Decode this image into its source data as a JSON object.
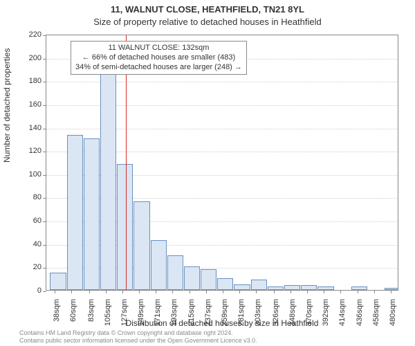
{
  "chart": {
    "type": "histogram",
    "title_main": "11, WALNUT CLOSE, HEATHFIELD, TN21 8YL",
    "title_sub": "Size of property relative to detached houses in Heathfield",
    "title_fontsize": 13,
    "ylabel": "Number of detached properties",
    "xlabel": "Distribution of detached houses by size in Heathfield",
    "label_fontsize": 12,
    "background_color": "#ffffff",
    "bar_fill": "#dbe6f4",
    "bar_stroke": "#6a8fc0",
    "grid_color": "#cccccc",
    "axis_color": "#888888",
    "ref_line_color": "#d62728",
    "ref_line_x": 132,
    "xlim": [
      27,
      491
    ],
    "ylim": [
      0,
      220
    ],
    "ytick_step": 20,
    "yticks": [
      0,
      20,
      40,
      60,
      80,
      100,
      120,
      140,
      160,
      180,
      200,
      220
    ],
    "xticks": [
      38,
      60,
      83,
      105,
      127,
      149,
      171,
      193,
      215,
      237,
      259,
      281,
      303,
      326,
      348,
      370,
      392,
      414,
      436,
      458,
      480
    ],
    "xtick_suffix": "sqm",
    "bars": [
      {
        "x0": 32,
        "x1": 54,
        "y": 15
      },
      {
        "x0": 54,
        "x1": 76,
        "y": 133
      },
      {
        "x0": 76,
        "x1": 98,
        "y": 130
      },
      {
        "x0": 98,
        "x1": 120,
        "y": 186
      },
      {
        "x0": 120,
        "x1": 142,
        "y": 108
      },
      {
        "x0": 142,
        "x1": 164,
        "y": 76
      },
      {
        "x0": 164,
        "x1": 186,
        "y": 43
      },
      {
        "x0": 186,
        "x1": 208,
        "y": 30
      },
      {
        "x0": 208,
        "x1": 230,
        "y": 20
      },
      {
        "x0": 230,
        "x1": 252,
        "y": 18
      },
      {
        "x0": 252,
        "x1": 274,
        "y": 10
      },
      {
        "x0": 274,
        "x1": 296,
        "y": 5
      },
      {
        "x0": 296,
        "x1": 318,
        "y": 9
      },
      {
        "x0": 318,
        "x1": 340,
        "y": 3
      },
      {
        "x0": 340,
        "x1": 362,
        "y": 4
      },
      {
        "x0": 362,
        "x1": 384,
        "y": 4
      },
      {
        "x0": 384,
        "x1": 406,
        "y": 3
      },
      {
        "x0": 406,
        "x1": 428,
        "y": 0
      },
      {
        "x0": 428,
        "x1": 450,
        "y": 3
      },
      {
        "x0": 450,
        "x1": 472,
        "y": 0
      },
      {
        "x0": 472,
        "x1": 491,
        "y": 2
      }
    ],
    "annotation": {
      "line1": "11 WALNUT CLOSE: 132sqm",
      "line2": "← 66% of detached houses are smaller (483)",
      "line3": "34% of semi-detached houses are larger (248) →",
      "box_border": "#888888",
      "box_bg": "#ffffff",
      "fontsize": 11
    },
    "footnote": {
      "line1": "Contains HM Land Registry data © Crown copyright and database right 2024.",
      "line2": "Contains public sector information licensed under the Open Government Licence v3.0.",
      "color": "#8a8a8a",
      "fontsize": 9
    }
  }
}
